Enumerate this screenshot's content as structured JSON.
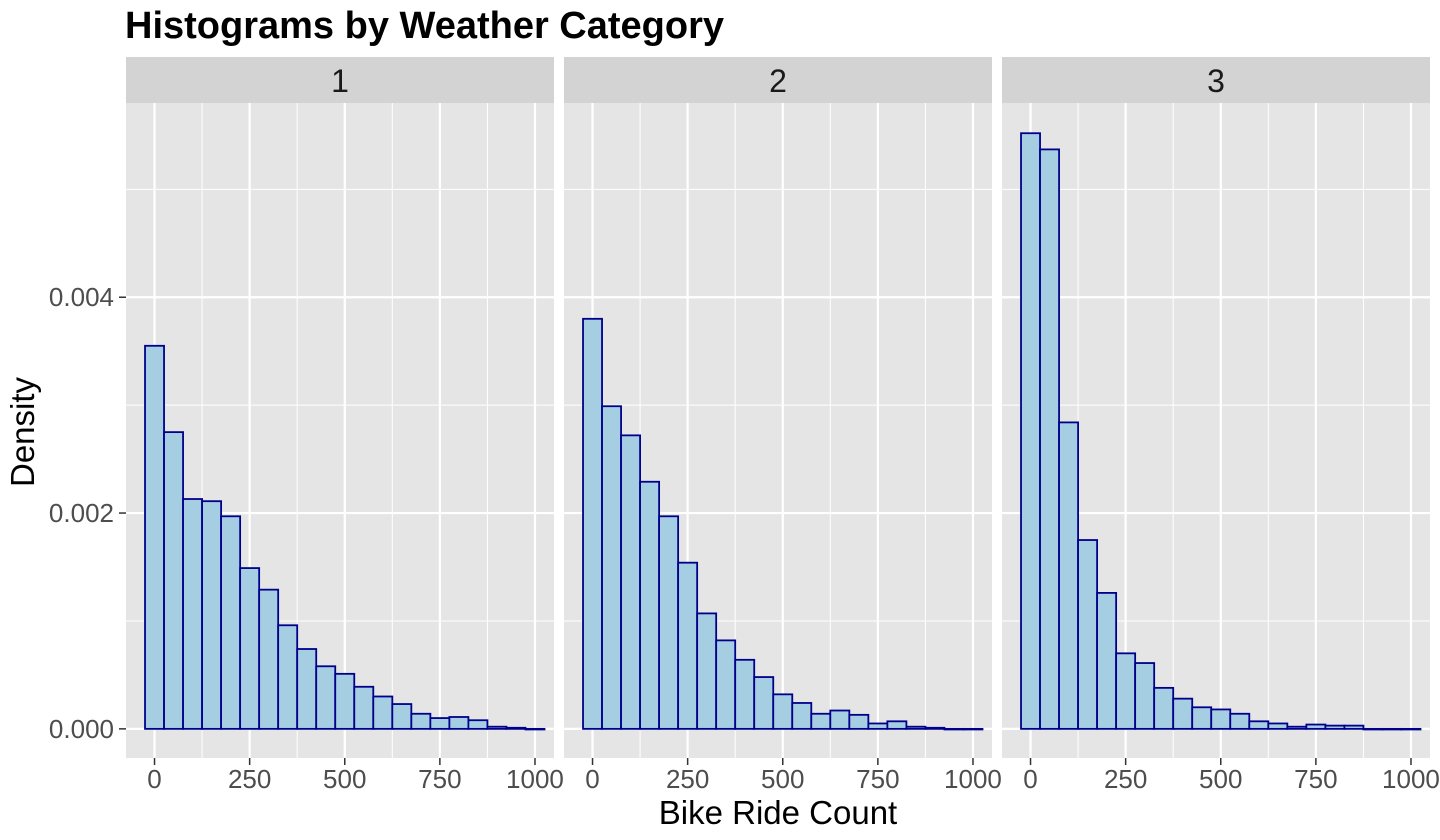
{
  "chart_data": {
    "type": "bar",
    "title": "Histograms by Weather Category",
    "xlabel": "Bike Ride Count",
    "ylabel": "Density",
    "xlim": [
      -75,
      1050
    ],
    "ylim": [
      -0.00027,
      0.0058
    ],
    "x_ticks": [
      0,
      250,
      500,
      750,
      1000
    ],
    "y_ticks": [
      0.0,
      0.002,
      0.004
    ],
    "y_tick_labels": [
      "0.000",
      "0.002",
      "0.004"
    ],
    "bin_width": 50,
    "bin_centers": [
      0,
      50,
      100,
      150,
      200,
      250,
      300,
      350,
      400,
      450,
      500,
      550,
      600,
      650,
      700,
      750,
      800,
      850,
      900,
      950,
      1000
    ],
    "grid": true,
    "legend": "none",
    "colors": {
      "bar_fill": "#a6cee3",
      "bar_outline": "#00008b",
      "panel_bg": "#e5e5e5",
      "strip_bg": "#d3d3d3",
      "grid": "#ffffff"
    },
    "panels": [
      {
        "label": "1",
        "values": [
          0.00355,
          0.00275,
          0.00213,
          0.00211,
          0.00197,
          0.00149,
          0.00129,
          0.00096,
          0.00074,
          0.00058,
          0.00051,
          0.00039,
          0.0003,
          0.00023,
          0.00014,
          0.0001,
          0.00011,
          8e-05,
          2e-05,
          1e-05,
          0
        ]
      },
      {
        "label": "2",
        "values": [
          0.0038,
          0.00299,
          0.00272,
          0.00229,
          0.00197,
          0.00154,
          0.00107,
          0.00082,
          0.00064,
          0.00048,
          0.00032,
          0.00024,
          0.00014,
          0.00017,
          0.00013,
          5e-05,
          7e-05,
          2e-05,
          1e-05,
          0,
          0
        ]
      },
      {
        "label": "3",
        "values": [
          0.00552,
          0.00537,
          0.00284,
          0.00175,
          0.00126,
          0.0007,
          0.00061,
          0.00038,
          0.00028,
          0.0002,
          0.00018,
          0.00014,
          7e-05,
          5e-05,
          2e-05,
          4e-05,
          3e-05,
          3e-05,
          0,
          0,
          0
        ]
      }
    ]
  }
}
